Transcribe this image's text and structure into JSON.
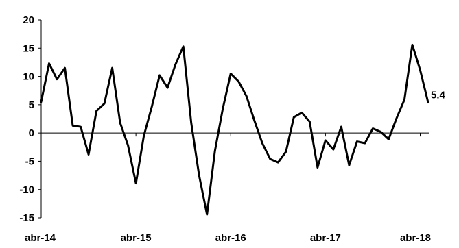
{
  "chart_data": {
    "type": "line",
    "title": "",
    "xlabel": "",
    "ylabel": "",
    "ylim": [
      -15,
      20
    ],
    "yticks": [
      20,
      15,
      10,
      5,
      0,
      -5,
      -10,
      -15
    ],
    "ytick_labels": [
      "20",
      "15",
      "10",
      "5",
      "0",
      "-5",
      "-10",
      "-15"
    ],
    "xtick_labels": [
      "abr-14",
      "abr-15",
      "abr-16",
      "abr-17",
      "abr-18"
    ],
    "xtick_index": [
      0,
      12,
      24,
      36,
      48
    ],
    "grid": false,
    "legend": "none",
    "series": [
      {
        "values": [
          5.5,
          12.3,
          9.5,
          11.5,
          1.3,
          1.1,
          -3.8,
          3.9,
          5.2,
          11.5,
          1.8,
          -2.2,
          -8.9,
          -0.5,
          4.6,
          10.2,
          8.0,
          12.1,
          15.3,
          1.8,
          -7.5,
          -14.4,
          -3.2,
          4.3,
          10.5,
          9.1,
          6.5,
          2.2,
          -1.8,
          -4.6,
          -5.2,
          -3.3,
          2.8,
          3.6,
          2.0,
          -6.1,
          -1.3,
          -2.9,
          1.1,
          -5.7,
          -1.5,
          -1.8,
          0.8,
          0.2,
          -1.1,
          2.6,
          5.9,
          15.6,
          11.1,
          5.4
        ],
        "color": "#000000"
      }
    ],
    "data_labels": [
      {
        "index": 49,
        "text": "5.4"
      }
    ]
  }
}
